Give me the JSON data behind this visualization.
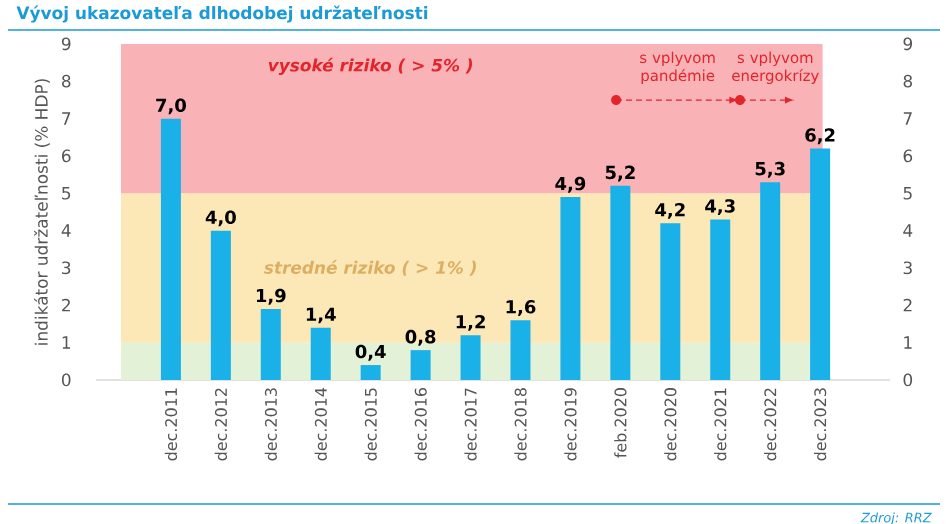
{
  "chart_data": {
    "type": "bar",
    "title": "Vývoj ukazovateľa dlhodobej udržateľnosti",
    "ylabel": "indikátor udržateľnosti (% HDP)",
    "categories": [
      "dec.2011",
      "dec.2012",
      "dec.2013",
      "dec.2014",
      "dec.2015",
      "dec.2016",
      "dec.2017",
      "dec.2018",
      "dec.2019",
      "feb.2020",
      "dec.2020",
      "dec.2021",
      "dec.2022",
      "dec.2023"
    ],
    "values": [
      7.0,
      4.0,
      1.9,
      1.4,
      0.4,
      0.8,
      1.2,
      1.6,
      4.9,
      5.2,
      4.2,
      4.3,
      5.3,
      6.2
    ],
    "value_labels": [
      "7,0",
      "4,0",
      "1,9",
      "1,4",
      "0,4",
      "0,8",
      "1,2",
      "1,6",
      "4,9",
      "5,2",
      "4,2",
      "4,3",
      "5,3",
      "6,2"
    ],
    "color": "#1ab0e8",
    "ylim": [
      0,
      9
    ],
    "yticks": [
      0,
      1,
      2,
      3,
      4,
      5,
      6,
      7,
      8,
      9
    ],
    "y2lim": [
      0,
      9
    ],
    "y2ticks": [
      0,
      1,
      2,
      3,
      4,
      5,
      6,
      7,
      8,
      9
    ],
    "bands": [
      {
        "axis": "y",
        "from": 0,
        "to": 1,
        "label": null,
        "color": "#e3f1d6"
      },
      {
        "axis": "y",
        "from": 1,
        "to": 5,
        "label": "stredné riziko ( > 1% )",
        "color": "#fbe8b6"
      },
      {
        "axis": "y",
        "from": 5,
        "to": 9,
        "label": "vysoké riziko ( > 5% )",
        "color": "#f9b3b7"
      }
    ],
    "annotations": [
      "s vplyvom pandémie",
      "s vplyvom energokrízy",
      "Zdroj: RRZ"
    ],
    "grid": false
  }
}
